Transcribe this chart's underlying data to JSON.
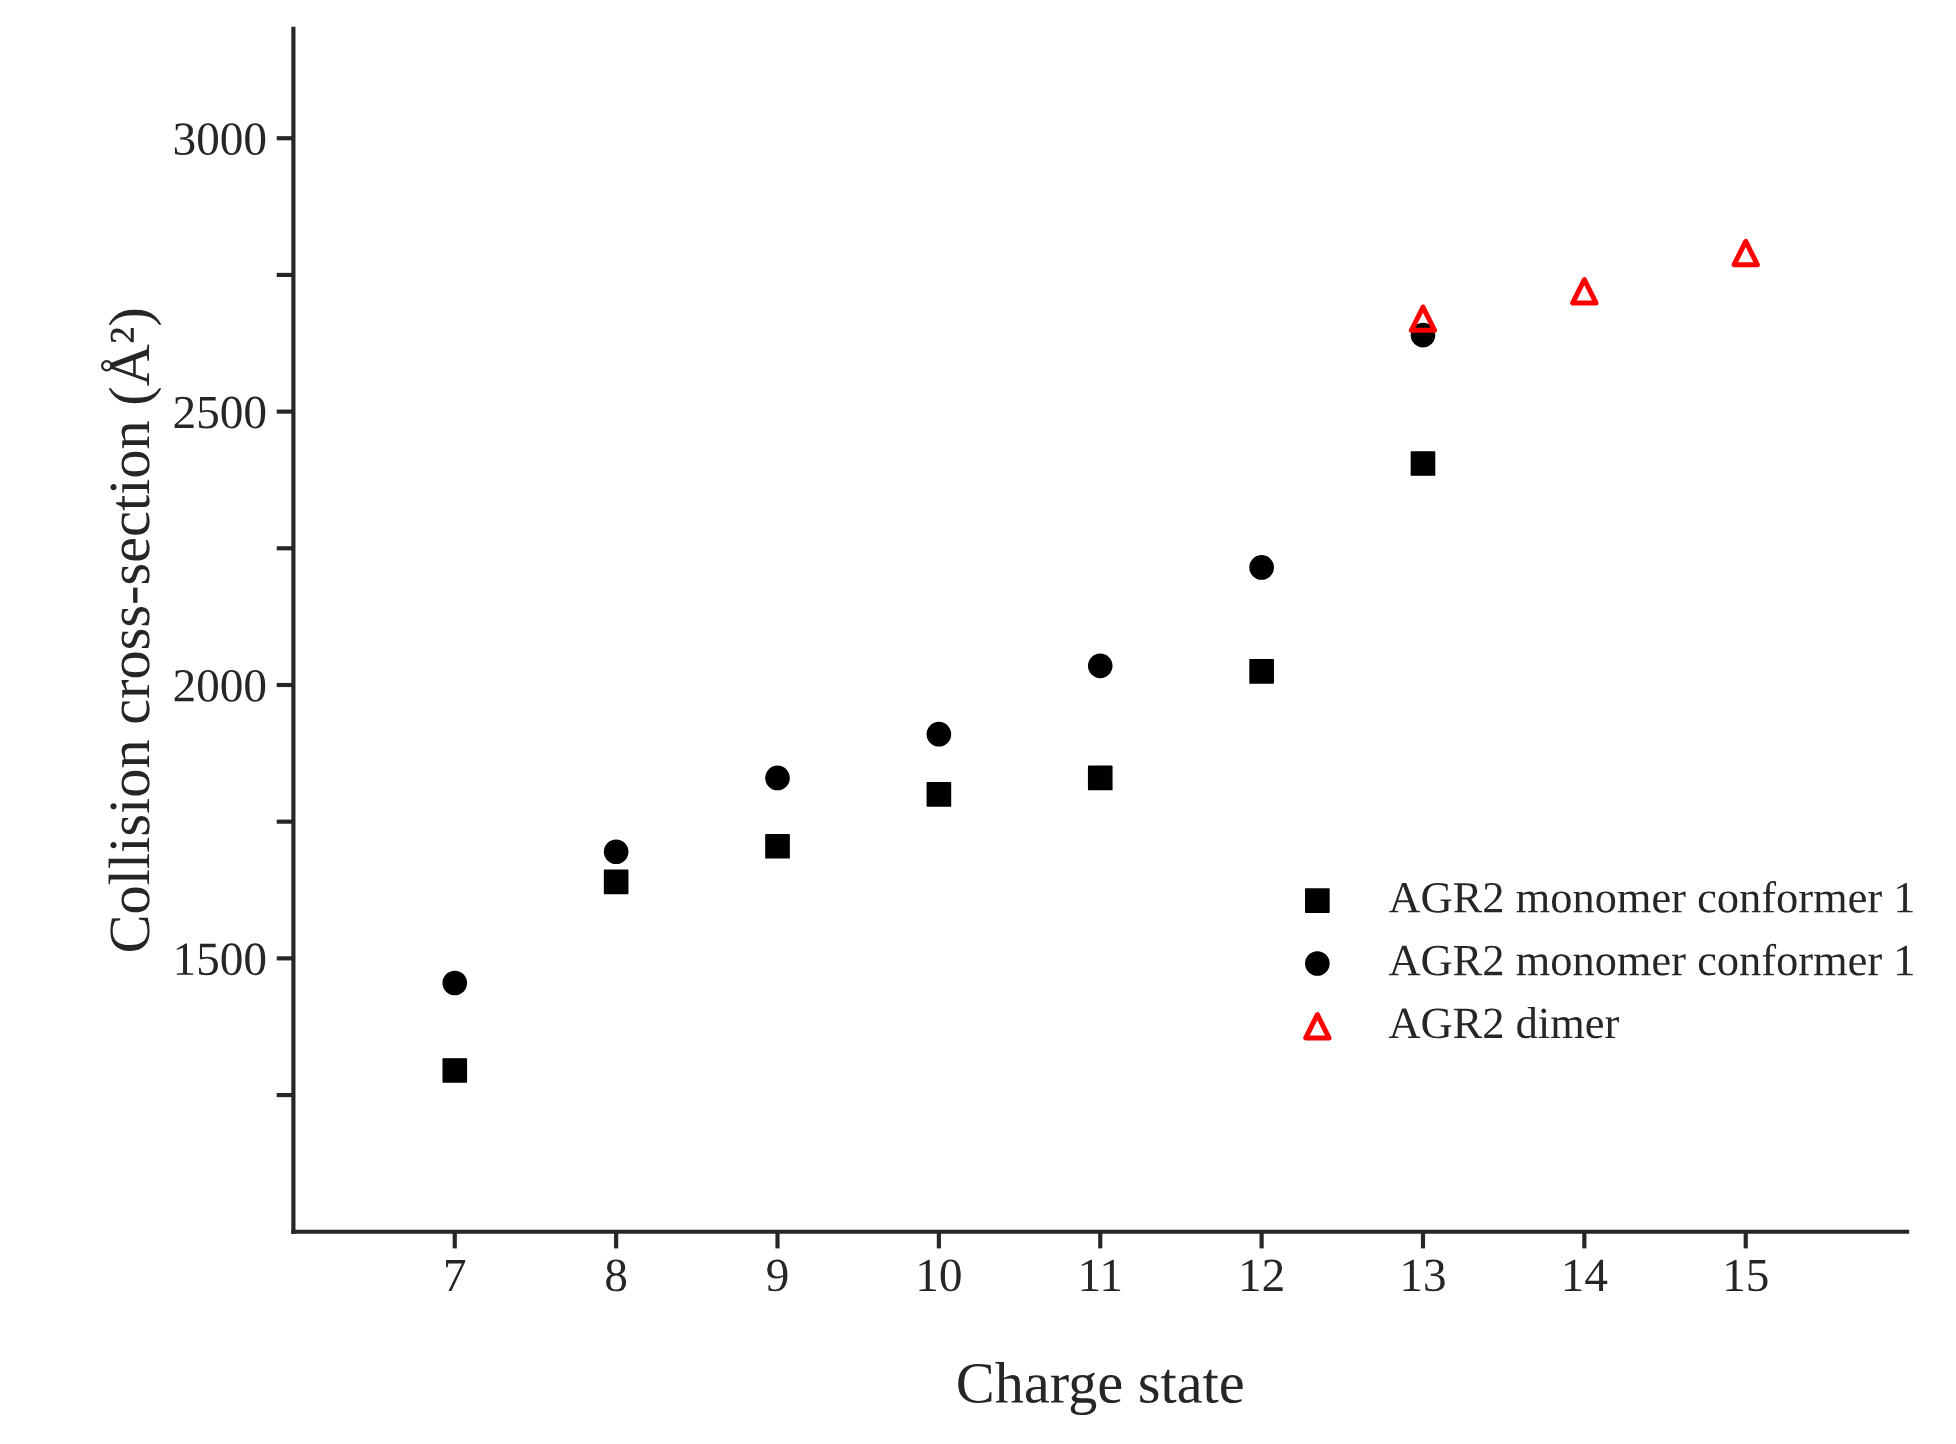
{
  "chart_data": {
    "type": "scatter",
    "xlabel": "Charge state",
    "ylabel": "Collision cross-section (Å²)",
    "xlim": [
      6,
      16
    ],
    "xticks": [
      7,
      8,
      9,
      10,
      11,
      12,
      13,
      14,
      15
    ],
    "ylim": [
      1000,
      3200
    ],
    "yticks": [
      {
        "value": 1250,
        "label": null
      },
      1500,
      {
        "value": 1750,
        "label": null
      },
      2000,
      {
        "value": 2250,
        "label": null
      },
      2500,
      {
        "value": 2750,
        "label": null
      },
      3000
    ],
    "grid": false,
    "legend": "bottom right",
    "series": [
      {
        "name": "AGR2 monomer conformer 1",
        "color": "#000000",
        "marker": "square",
        "x": [
          7,
          8,
          9,
          10,
          11,
          12,
          13
        ],
        "values": [
          1295,
          1640,
          1705,
          1800,
          1830,
          2025,
          2405
        ]
      },
      {
        "name": "AGR2 monomer conformer 1",
        "color": "#000000",
        "marker": "circle",
        "x": [
          7,
          8,
          9,
          10,
          11,
          12,
          13
        ],
        "values": [
          1455,
          1695,
          1830,
          1910,
          2035,
          2215,
          2640
        ]
      },
      {
        "name": "AGR2 dimer",
        "color": "#ff0000",
        "marker": "triangle",
        "x": [
          13,
          14,
          15
        ],
        "values": [
          2670,
          2720,
          2790
        ]
      }
    ]
  }
}
